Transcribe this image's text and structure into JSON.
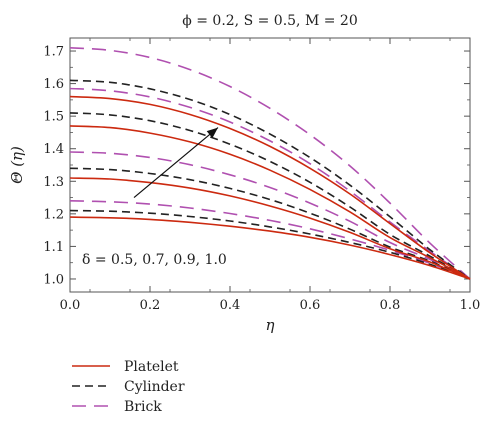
{
  "chart_data": {
    "type": "line",
    "title": "ϕ = 0.2, S = 0.5, M = 20",
    "xlabel": "η",
    "ylabel": "Θ (η)",
    "xlim": [
      0.0,
      1.0
    ],
    "ylim": [
      0.96,
      1.74
    ],
    "x_ticks": [
      0.0,
      0.2,
      0.4,
      0.6,
      0.8,
      1.0
    ],
    "x_tick_labels": [
      "0.0",
      "0.2",
      "0.4",
      "0.6",
      "0.8",
      "1.0"
    ],
    "y_ticks": [
      1.0,
      1.1,
      1.2,
      1.3,
      1.4,
      1.5,
      1.6,
      1.7
    ],
    "y_tick_labels": [
      "1.0",
      "1.1",
      "1.2",
      "1.3",
      "1.4",
      "1.5",
      "1.6",
      "1.7"
    ],
    "grid": false,
    "legend_position": "bottom-left, below plot",
    "annotation": "δ = 0.5, 0.7, 0.9, 1.0",
    "arrow": {
      "from": [
        0.16,
        1.25
      ],
      "to": [
        0.37,
        1.465
      ]
    },
    "x": [
      0.0,
      0.1,
      0.2,
      0.3,
      0.4,
      0.5,
      0.6,
      0.7,
      0.8,
      0.9,
      1.0
    ],
    "series": [
      {
        "name": "Platelet",
        "style": "solid",
        "color": "#cc2a10",
        "group": 0,
        "values": [
          1.19,
          1.188,
          1.183,
          1.174,
          1.162,
          1.147,
          1.128,
          1.104,
          1.075,
          1.041,
          1.0
        ]
      },
      {
        "name": "Platelet",
        "style": "solid",
        "color": "#cc2a10",
        "group": 1,
        "values": [
          1.31,
          1.307,
          1.296,
          1.279,
          1.255,
          1.224,
          1.187,
          1.143,
          1.093,
          1.052,
          1.0
        ]
      },
      {
        "name": "Platelet",
        "style": "solid",
        "color": "#cc2a10",
        "group": 2,
        "values": [
          1.47,
          1.465,
          1.448,
          1.421,
          1.383,
          1.334,
          1.275,
          1.206,
          1.127,
          1.065,
          1.0
        ]
      },
      {
        "name": "Platelet",
        "style": "solid",
        "color": "#cc2a10",
        "group": 3,
        "values": [
          1.56,
          1.554,
          1.536,
          1.505,
          1.462,
          1.407,
          1.34,
          1.261,
          1.17,
          1.08,
          1.0
        ]
      },
      {
        "name": "Cylinder",
        "style": "dashed",
        "color": "#222222",
        "group": 0,
        "values": [
          1.21,
          1.208,
          1.202,
          1.192,
          1.178,
          1.16,
          1.138,
          1.112,
          1.082,
          1.045,
          1.0
        ]
      },
      {
        "name": "Cylinder",
        "style": "dashed",
        "color": "#222222",
        "group": 1,
        "values": [
          1.34,
          1.336,
          1.324,
          1.305,
          1.278,
          1.244,
          1.202,
          1.153,
          1.098,
          1.055,
          1.0
        ]
      },
      {
        "name": "Cylinder",
        "style": "dashed",
        "color": "#222222",
        "group": 2,
        "values": [
          1.51,
          1.504,
          1.486,
          1.456,
          1.414,
          1.361,
          1.297,
          1.221,
          1.137,
          1.07,
          1.0
        ]
      },
      {
        "name": "Cylinder",
        "style": "dashed",
        "color": "#222222",
        "group": 3,
        "values": [
          1.61,
          1.604,
          1.584,
          1.551,
          1.505,
          1.445,
          1.373,
          1.288,
          1.191,
          1.09,
          1.0
        ]
      },
      {
        "name": "Brick",
        "style": "dashed",
        "color": "#b050b0",
        "group": 0,
        "values": [
          1.24,
          1.237,
          1.23,
          1.218,
          1.201,
          1.18,
          1.154,
          1.123,
          1.088,
          1.048,
          1.0
        ]
      },
      {
        "name": "Brick",
        "style": "dashed",
        "color": "#b050b0",
        "group": 1,
        "values": [
          1.39,
          1.386,
          1.373,
          1.351,
          1.32,
          1.281,
          1.233,
          1.177,
          1.112,
          1.06,
          1.0
        ]
      },
      {
        "name": "Brick",
        "style": "dashed",
        "color": "#b050b0",
        "group": 2,
        "values": [
          1.585,
          1.578,
          1.559,
          1.527,
          1.482,
          1.424,
          1.354,
          1.27,
          1.175,
          1.085,
          1.0
        ]
      },
      {
        "name": "Brick",
        "style": "dashed",
        "color": "#b050b0",
        "group": 3,
        "values": [
          1.71,
          1.702,
          1.68,
          1.643,
          1.591,
          1.524,
          1.443,
          1.347,
          1.233,
          1.11,
          1.0
        ]
      }
    ],
    "legend": [
      {
        "label": "Platelet",
        "style": "solid",
        "color": "#cc2a10"
      },
      {
        "label": "Cylinder",
        "style": "dashed",
        "color": "#222222"
      },
      {
        "label": "Brick",
        "style": "dashed",
        "color": "#b050b0"
      }
    ]
  }
}
